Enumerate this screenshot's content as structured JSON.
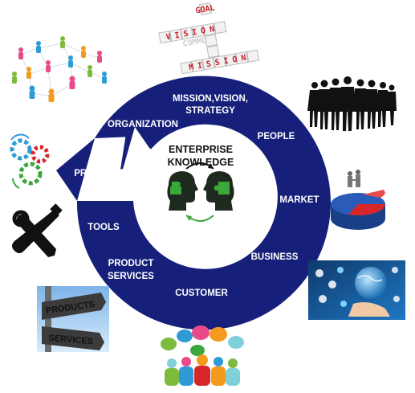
{
  "title": {
    "line1": "ENTERPRISE",
    "line2": "KNOWLEDGE"
  },
  "ring_labels": {
    "mission_line1": "MISSION,VISION,",
    "mission_line2": "STRATEGY",
    "people": "PEOPLE",
    "market": "MARKET",
    "business": "BUSINESS",
    "customer": "CUSTOMER",
    "product_line1": "PRODUCT",
    "product_line2": "SERVICES",
    "tools": "TOOLS",
    "processes": "PROCESSES",
    "organization": "ORGANIZATION"
  },
  "crossword": {
    "vision": "VISION",
    "goal": "GOAL",
    "mission": "MISSION",
    "faded": "COMMON"
  },
  "signpost": {
    "top": "PRODUCTS",
    "bottom": "SERVICES"
  },
  "colors": {
    "ring": "#16207a",
    "tile_red": "#c8232c",
    "tile_black": "#222222",
    "head_dark": "#1e2a1e",
    "head_green": "#3aa83a",
    "pie_blue": "#2a5bb8",
    "pie_red": "#d6262a"
  }
}
